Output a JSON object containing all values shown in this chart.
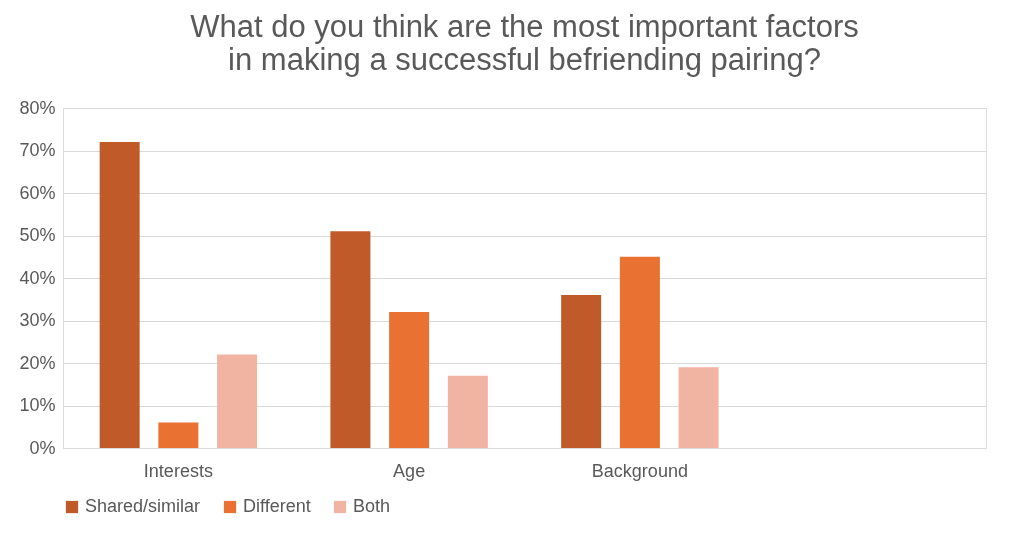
{
  "chart_data": {
    "type": "bar",
    "title": "What do you think are the most important factors\nin making a successful befriending pairing?",
    "categories": [
      "Interests",
      "Age",
      "Background",
      null
    ],
    "series": [
      {
        "name": "Shared/similar",
        "color": "#c05a28",
        "values": [
          72,
          51,
          36,
          null
        ]
      },
      {
        "name": "Different",
        "color": "#e97132",
        "values": [
          6,
          32,
          45,
          null
        ]
      },
      {
        "name": "Both",
        "color": "#f1b4a2",
        "values": [
          22,
          17,
          19,
          null
        ]
      }
    ],
    "ylim": [
      0,
      80
    ],
    "yticks": [
      {
        "value": 0,
        "label": "0%"
      },
      {
        "value": 10,
        "label": "10%"
      },
      {
        "value": 20,
        "label": "20%"
      },
      {
        "value": 30,
        "label": "30%"
      },
      {
        "value": 40,
        "label": "40%"
      },
      {
        "value": 50,
        "label": "50%"
      },
      {
        "value": 60,
        "label": "60%"
      },
      {
        "value": 70,
        "label": "70%"
      },
      {
        "value": 80,
        "label": "80%"
      }
    ],
    "grid": "y",
    "legend": "bottom"
  }
}
